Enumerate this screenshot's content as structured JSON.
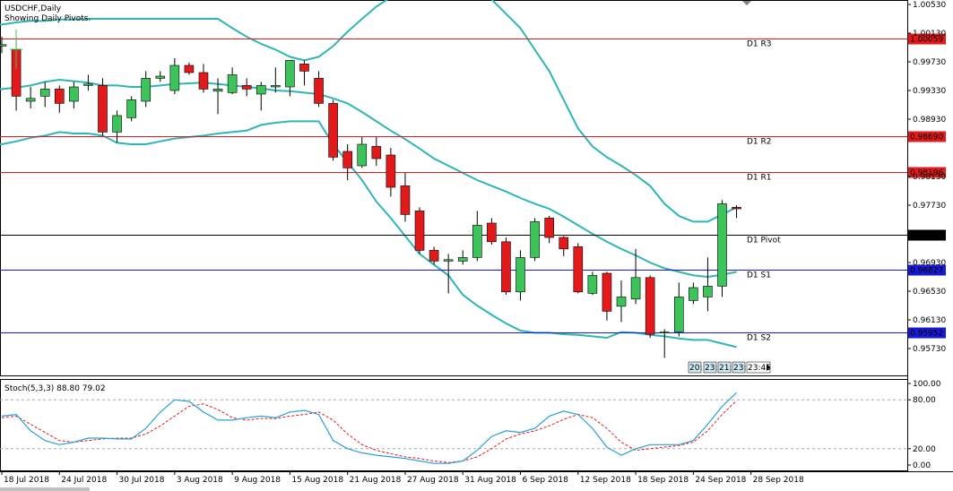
{
  "header": {
    "symbol": "USDCHF,Daily",
    "indicator_note": "Showing Daily Pivots."
  },
  "colors": {
    "bull": "#3cc45a",
    "bear": "#e31a1c",
    "band": "#2fb5b5",
    "resistance": "#e31a1c",
    "pivot": "#000000",
    "support": "#1a1ad6",
    "stoch_main": "#2aa0d8",
    "stoch_signal": "#e31a1c"
  },
  "price_axis": {
    "ticks": [
      "1.00530",
      "1.00130",
      "0.99730",
      "0.99330",
      "0.98930",
      "0.98130",
      "0.97730",
      "0.96930",
      "0.96530",
      "0.96130",
      "0.95730"
    ]
  },
  "stoch_axis": {
    "ticks": [
      "100.00",
      "80.00",
      "20.00",
      "0.00"
    ]
  },
  "time_axis": {
    "labels": [
      "18 Jul 2018",
      "24 Jul 2018",
      "30 Jul 2018",
      "3 Aug 2018",
      "9 Aug 2018",
      "15 Aug 2018",
      "21 Aug 2018",
      "27 Aug 2018",
      "31 Aug 2018",
      "6 Sep 2018",
      "12 Sep 2018",
      "18 Sep 2018",
      "24 Sep 2018",
      "28 Sep 2018"
    ]
  },
  "pivot_levels": [
    {
      "name": "D1 R3",
      "value": 1.00059,
      "price_label": "1.00059",
      "kind": "resistance"
    },
    {
      "name": "D1 R2",
      "value": 0.9869,
      "price_label": "0.98690",
      "kind": "resistance"
    },
    {
      "name": "D1 R1",
      "value": 0.98196,
      "price_label": "0.98196",
      "kind": "resistance"
    },
    {
      "name": "D1 Pivot",
      "value": 0.97321,
      "price_label": "0.97321",
      "kind": "pivot"
    },
    {
      "name": "D1 S1",
      "value": 0.96827,
      "price_label": "0.96827",
      "kind": "support"
    },
    {
      "name": "D1 S2",
      "value": 0.95952,
      "price_label": "0.95952",
      "kind": "support"
    }
  ],
  "session_labels": [
    "20:",
    "23:",
    "21:",
    "23:",
    "23:45"
  ],
  "stochastic": {
    "label": "Stoch(5,3,3) 88.80 79.02"
  },
  "chart_data": {
    "type": "candlestick",
    "x_dates": [
      "18 Jul 2018",
      "19 Jul 2018",
      "20 Jul 2018",
      "23 Jul 2018",
      "24 Jul 2018",
      "25 Jul 2018",
      "26 Jul 2018",
      "27 Jul 2018",
      "30 Jul 2018",
      "31 Jul 2018",
      "1 Aug 2018",
      "2 Aug 2018",
      "3 Aug 2018",
      "6 Aug 2018",
      "7 Aug 2018",
      "8 Aug 2018",
      "9 Aug 2018",
      "10 Aug 2018",
      "13 Aug 2018",
      "14 Aug 2018",
      "15 Aug 2018",
      "16 Aug 2018",
      "17 Aug 2018",
      "20 Aug 2018",
      "21 Aug 2018",
      "22 Aug 2018",
      "23 Aug 2018",
      "24 Aug 2018",
      "27 Aug 2018",
      "28 Aug 2018",
      "29 Aug 2018",
      "30 Aug 2018",
      "31 Aug 2018",
      "3 Sep 2018",
      "4 Sep 2018",
      "5 Sep 2018",
      "6 Sep 2018",
      "7 Sep 2018",
      "10 Sep 2018",
      "11 Sep 2018",
      "12 Sep 2018",
      "13 Sep 2018",
      "14 Sep 2018",
      "17 Sep 2018",
      "18 Sep 2018",
      "19 Sep 2018",
      "20 Sep 2018",
      "21 Sep 2018",
      "24 Sep 2018",
      "25 Sep 2018",
      "26 Sep 2018",
      "27 Sep 2018"
    ],
    "ohlc": [
      [
        0.9995,
        1.0008,
        0.9985,
        0.9997
      ],
      [
        0.999,
        1.0008,
        0.9905,
        0.9925
      ],
      [
        0.9918,
        0.9938,
        0.9908,
        0.9922
      ],
      [
        0.9925,
        0.9945,
        0.991,
        0.9935
      ],
      [
        0.9935,
        0.994,
        0.9902,
        0.9915
      ],
      [
        0.9918,
        0.9945,
        0.9908,
        0.9938
      ],
      [
        0.994,
        0.9955,
        0.9933,
        0.9942
      ],
      [
        0.994,
        0.995,
        0.987,
        0.9875
      ],
      [
        0.9875,
        0.9905,
        0.986,
        0.9898
      ],
      [
        0.9895,
        0.9925,
        0.989,
        0.992
      ],
      [
        0.9918,
        0.996,
        0.991,
        0.995
      ],
      [
        0.995,
        0.996,
        0.9945,
        0.9953
      ],
      [
        0.9933,
        0.9978,
        0.9928,
        0.9968
      ],
      [
        0.9968,
        0.9972,
        0.9955,
        0.9958
      ],
      [
        0.9958,
        0.997,
        0.993,
        0.9935
      ],
      [
        0.9932,
        0.995,
        0.99,
        0.9935
      ],
      [
        0.993,
        0.9965,
        0.9928,
        0.9955
      ],
      [
        0.994,
        0.995,
        0.9925,
        0.9935
      ],
      [
        0.9928,
        0.9945,
        0.9905,
        0.994
      ],
      [
        0.9938,
        0.9965,
        0.993,
        0.994
      ],
      [
        0.9938,
        0.9975,
        0.9925,
        0.9975
      ],
      [
        0.997,
        0.9975,
        0.994,
        0.996
      ],
      [
        0.995,
        0.996,
        0.991,
        0.9915
      ],
      [
        0.9915,
        0.992,
        0.9835,
        0.984
      ],
      [
        0.9848,
        0.9858,
        0.9808,
        0.9825
      ],
      [
        0.9828,
        0.9868,
        0.9825,
        0.9858
      ],
      [
        0.9855,
        0.9868,
        0.9828,
        0.9838
      ],
      [
        0.9843,
        0.9853,
        0.9785,
        0.9798
      ],
      [
        0.98,
        0.9818,
        0.975,
        0.976
      ],
      [
        0.9765,
        0.977,
        0.9705,
        0.971
      ],
      [
        0.971,
        0.9715,
        0.969,
        0.9695
      ],
      [
        0.9695,
        0.9705,
        0.965,
        0.9697
      ],
      [
        0.9695,
        0.971,
        0.969,
        0.97
      ],
      [
        0.97,
        0.9765,
        0.9695,
        0.9745
      ],
      [
        0.9748,
        0.9755,
        0.9718,
        0.9722
      ],
      [
        0.9722,
        0.9728,
        0.9648,
        0.9652
      ],
      [
        0.9652,
        0.971,
        0.964,
        0.97
      ],
      [
        0.97,
        0.9755,
        0.9695,
        0.975
      ],
      [
        0.9755,
        0.9758,
        0.972,
        0.9728
      ],
      [
        0.9728,
        0.973,
        0.9702,
        0.9712
      ],
      [
        0.9715,
        0.972,
        0.965,
        0.9652
      ],
      [
        0.965,
        0.968,
        0.9648,
        0.9675
      ],
      [
        0.9678,
        0.968,
        0.9612,
        0.9625
      ],
      [
        0.9632,
        0.9668,
        0.961,
        0.9645
      ],
      [
        0.9642,
        0.9712,
        0.9635,
        0.9672
      ],
      [
        0.9672,
        0.9675,
        0.9588,
        0.9593
      ],
      [
        0.9595,
        0.96,
        0.956,
        0.9596
      ],
      [
        0.9596,
        0.9665,
        0.959,
        0.9645
      ],
      [
        0.964,
        0.9665,
        0.9635,
        0.9658
      ],
      [
        0.9645,
        0.97,
        0.9625,
        0.966
      ],
      [
        0.966,
        0.978,
        0.9645,
        0.9775
      ],
      [
        0.977,
        0.9773,
        0.9755,
        0.9768
      ]
    ],
    "bollinger_upper": [
      1.0025,
      1.0028,
      1.003,
      1.003,
      1.0032,
      1.0032,
      1.0033,
      1.0033,
      1.0033,
      1.0033,
      1.0033,
      1.0033,
      1.0033,
      1.0033,
      1.0033,
      1.0033,
      1.002,
      1.0008,
      0.9998,
      0.999,
      0.998,
      0.9975,
      0.998,
      0.9995,
      1.0015,
      1.0033,
      1.005,
      1.0063,
      1.0075,
      1.0088,
      1.0093,
      1.0093,
      1.0088,
      1.0075,
      1.006,
      1.004,
      1.002,
      0.999,
      0.996,
      0.992,
      0.988,
      0.9855,
      0.984,
      0.9828,
      0.9815,
      0.98,
      0.9775,
      0.9758,
      0.975,
      0.975,
      0.976,
      0.977
    ],
    "bollinger_middle": [
      0.9935,
      0.9937,
      0.994,
      0.9945,
      0.9948,
      0.9946,
      0.9944,
      0.994,
      0.994,
      0.9938,
      0.9938,
      0.994,
      0.9942,
      0.9943,
      0.9944,
      0.9942,
      0.994,
      0.9938,
      0.9936,
      0.9933,
      0.9932,
      0.993,
      0.9928,
      0.9922,
      0.9915,
      0.9903,
      0.989,
      0.9877,
      0.9865,
      0.9852,
      0.9838,
      0.9828,
      0.9818,
      0.9808,
      0.98,
      0.9792,
      0.9783,
      0.9775,
      0.9768,
      0.9757,
      0.9745,
      0.9733,
      0.9722,
      0.9712,
      0.9703,
      0.9693,
      0.9685,
      0.968,
      0.9675,
      0.9673,
      0.9676,
      0.968
    ],
    "bollinger_lower": [
      0.9858,
      0.9862,
      0.9867,
      0.987,
      0.9875,
      0.9873,
      0.9873,
      0.987,
      0.986,
      0.9858,
      0.9858,
      0.9862,
      0.9866,
      0.9868,
      0.987,
      0.9873,
      0.9875,
      0.9877,
      0.9885,
      0.9888,
      0.989,
      0.989,
      0.989,
      0.9858,
      0.9833,
      0.9808,
      0.9778,
      0.9755,
      0.973,
      0.9705,
      0.969,
      0.9675,
      0.9648,
      0.9633,
      0.962,
      0.9608,
      0.9598,
      0.9595,
      0.9595,
      0.9593,
      0.9592,
      0.959,
      0.9588,
      0.9596,
      0.9595,
      0.9592,
      0.959,
      0.9587,
      0.9585,
      0.9585,
      0.958,
      0.9575
    ],
    "stoch_main": [
      60,
      62,
      42,
      30,
      25,
      28,
      33,
      33,
      32,
      32,
      45,
      65,
      80,
      78,
      65,
      55,
      55,
      58,
      60,
      58,
      65,
      67,
      62,
      30,
      20,
      15,
      12,
      10,
      8,
      5,
      2,
      2,
      5,
      18,
      35,
      42,
      40,
      45,
      60,
      66,
      62,
      45,
      22,
      12,
      20,
      25,
      25,
      25,
      30,
      50,
      72,
      88.8
    ],
    "stoch_signal": [
      58,
      60,
      50,
      40,
      30,
      28,
      30,
      32,
      33,
      33,
      38,
      48,
      60,
      72,
      75,
      68,
      58,
      55,
      57,
      57,
      60,
      62,
      65,
      55,
      38,
      25,
      18,
      14,
      10,
      8,
      5,
      3,
      5,
      10,
      20,
      32,
      38,
      42,
      48,
      56,
      62,
      58,
      45,
      28,
      18,
      20,
      22,
      24,
      28,
      42,
      62,
      79.02
    ],
    "y_range": [
      0.9555,
      1.0053
    ],
    "stoch_range": [
      0,
      100
    ],
    "grid": false
  }
}
